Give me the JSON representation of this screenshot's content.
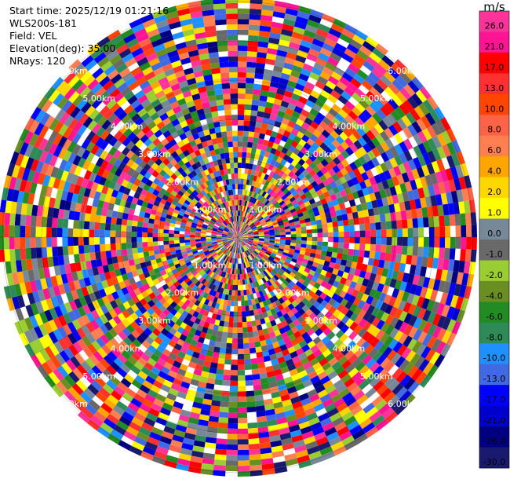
{
  "info": {
    "start_time": "Start time: 2025/12/19 01:21:16",
    "station": "WLS200s-181",
    "field": "Field: VEL",
    "elevation": "Elevation(deg): 35.00",
    "nrays": "NRays: 120"
  },
  "chart_data": {
    "type": "heatmap",
    "projection": "polar-ppi",
    "field": "VEL",
    "units": "m/s",
    "elevation_deg": 35.0,
    "n_rays": 120,
    "range_rings": [
      {
        "label": "1.00km",
        "range_km": 1.0
      },
      {
        "label": "2.00km",
        "range_km": 2.0
      },
      {
        "label": "3.00km",
        "range_km": 3.0
      },
      {
        "label": "4.00km",
        "range_km": 4.0
      },
      {
        "label": "5.00km",
        "range_km": 5.0
      },
      {
        "label": "6.00km",
        "range_km": 6.0
      }
    ],
    "max_range_km": 6.1,
    "colorbar": {
      "label": "m/s",
      "ticks": [
        "26.0",
        "21.0",
        "17.0",
        "13.0",
        "10.0",
        "8.0",
        "6.0",
        "4.0",
        "2.0",
        "1.0",
        "0.0",
        "-1.0",
        "-2.0",
        "-4.0",
        "-6.0",
        "-8.0",
        "-10.0",
        "-13.0",
        "-17.0",
        "-21.0",
        "-26.0",
        "-30.0"
      ],
      "bins": [
        {
          "low": 26,
          "high": 30,
          "color": "#ff3399"
        },
        {
          "low": 21,
          "high": 26,
          "color": "#ff1493"
        },
        {
          "low": 17,
          "high": 21,
          "color": "#ff0000"
        },
        {
          "low": 13,
          "high": 17,
          "color": "#ff3030"
        },
        {
          "low": 10,
          "high": 13,
          "color": "#ff4500"
        },
        {
          "low": 8,
          "high": 10,
          "color": "#ff6347"
        },
        {
          "low": 6,
          "high": 8,
          "color": "#ff7f50"
        },
        {
          "low": 4,
          "high": 6,
          "color": "#ffa500"
        },
        {
          "low": 2,
          "high": 4,
          "color": "#ffd700"
        },
        {
          "low": 1,
          "high": 2,
          "color": "#ffff00"
        },
        {
          "low": 0,
          "high": 1,
          "color": "#778899"
        },
        {
          "low": -1,
          "high": 0,
          "color": "#696969"
        },
        {
          "low": -2,
          "high": -1,
          "color": "#9acd32"
        },
        {
          "low": -4,
          "high": -2,
          "color": "#6b8e23"
        },
        {
          "low": -6,
          "high": -4,
          "color": "#228b22"
        },
        {
          "low": -8,
          "high": -6,
          "color": "#2e8b57"
        },
        {
          "low": -10,
          "high": -8,
          "color": "#1e90ff"
        },
        {
          "low": -13,
          "high": -10,
          "color": "#4169e1"
        },
        {
          "low": -17,
          "high": -13,
          "color": "#0000ff"
        },
        {
          "low": -21,
          "high": -17,
          "color": "#0000cd"
        },
        {
          "low": -26,
          "high": -21,
          "color": "#000080"
        },
        {
          "low": -30,
          "high": -26,
          "color": "#191970"
        }
      ]
    },
    "grid": true
  }
}
